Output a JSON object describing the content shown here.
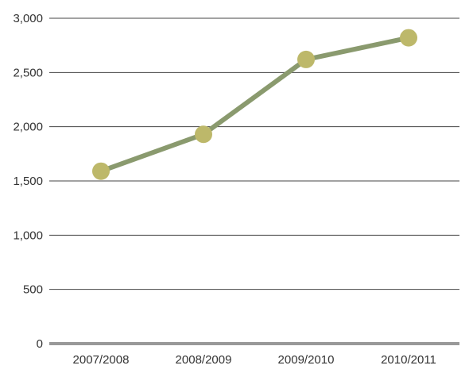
{
  "chart_data": {
    "type": "line",
    "title": "",
    "xlabel": "",
    "ylabel": "",
    "categories": [
      "2007/2008",
      "2008/2009",
      "2009/2010",
      "2010/2011"
    ],
    "series": [
      {
        "values": [
          1590,
          1930,
          2620,
          2820
        ]
      }
    ],
    "ylim": [
      0,
      3000
    ],
    "yticks": [
      0,
      500,
      1000,
      1500,
      2000,
      2500,
      3000
    ],
    "ytick_labels": [
      "0",
      "500",
      "1,000",
      "1,500",
      "2,000",
      "2,500",
      "3,000"
    ],
    "grid": "horizontal",
    "colors": {
      "line": "#8a9a6e",
      "marker": "#bdb86a",
      "grid": "#444444",
      "baseline": "#999999",
      "text": "#333333"
    }
  }
}
